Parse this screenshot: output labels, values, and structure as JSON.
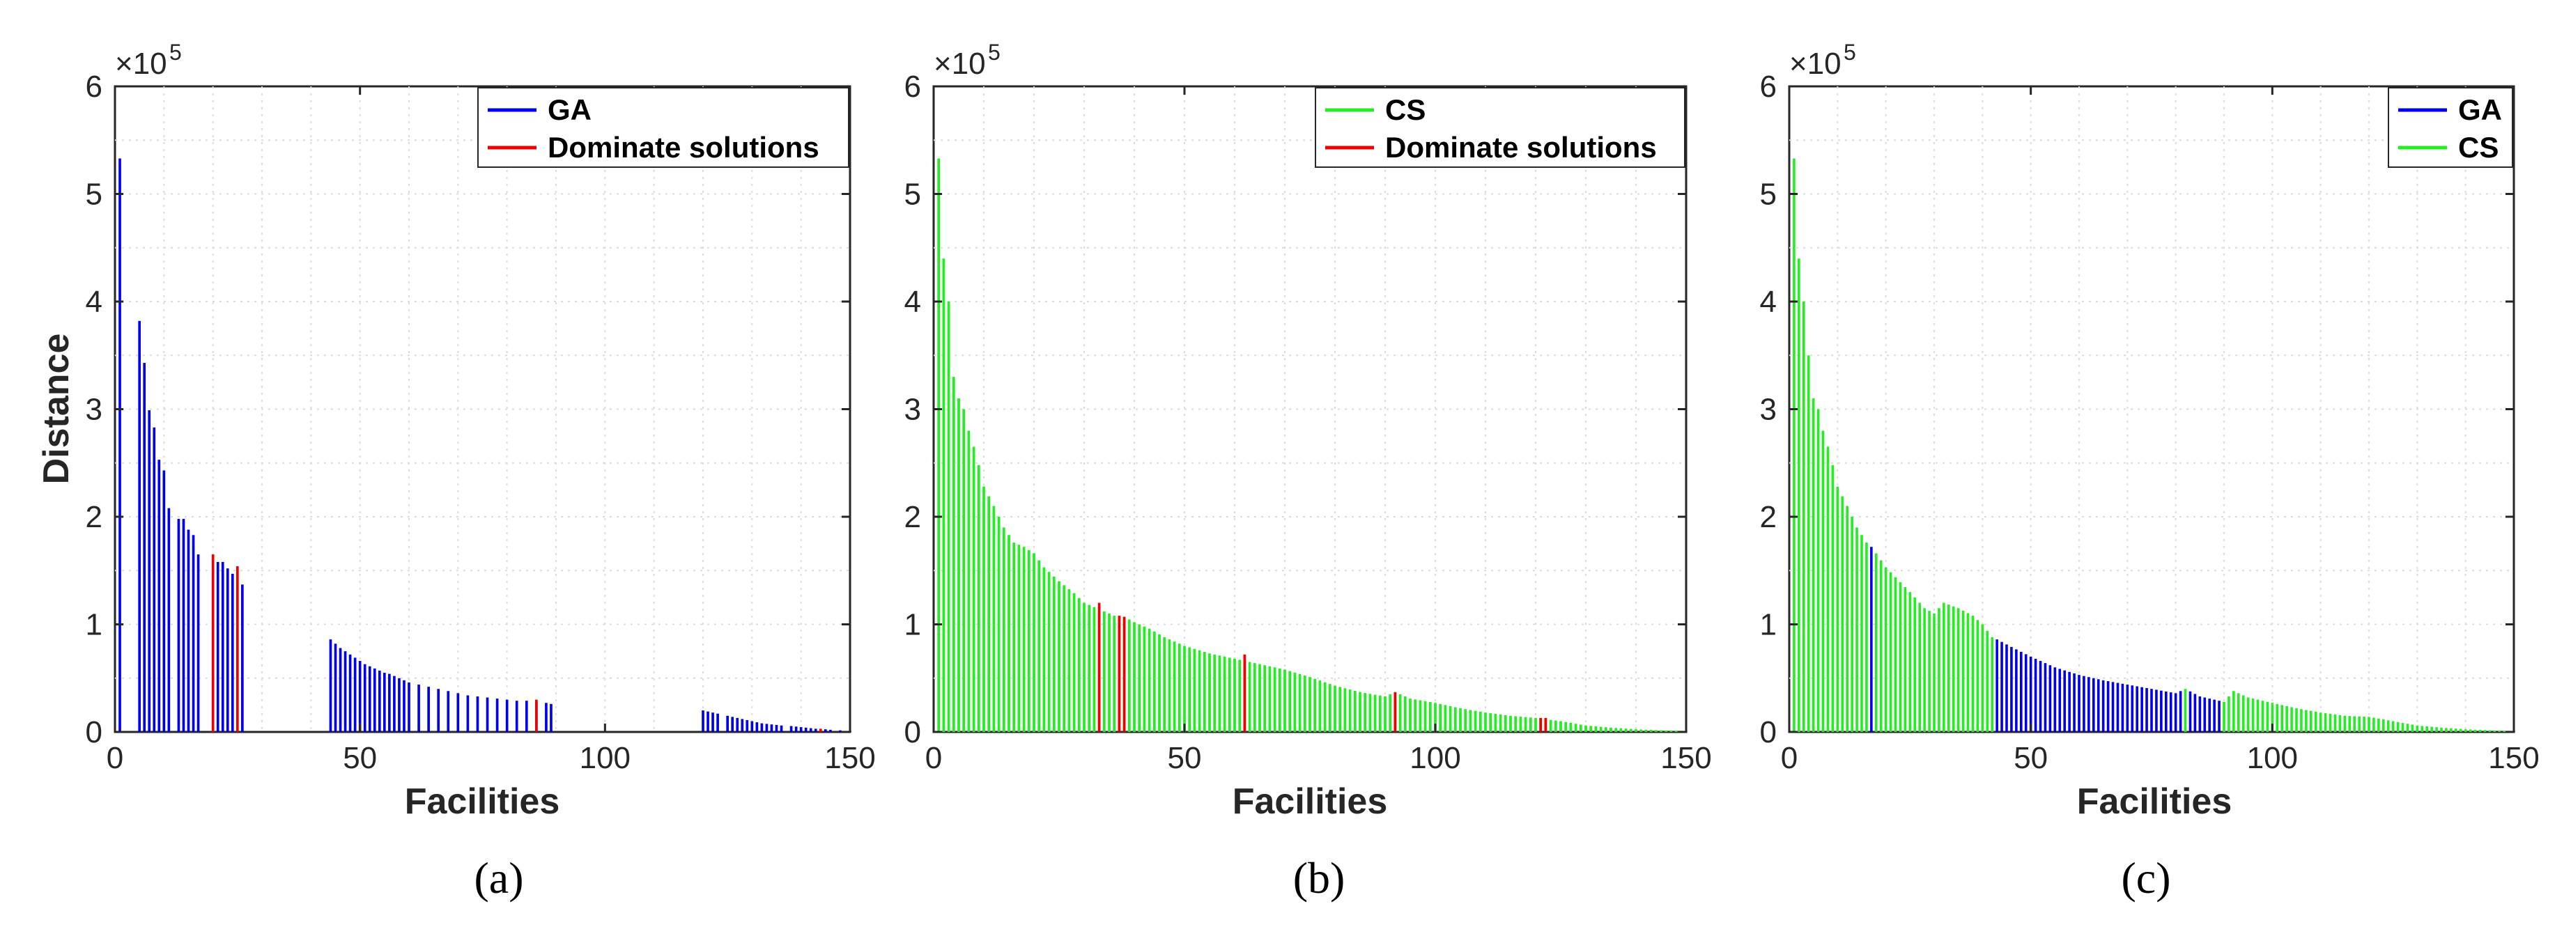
{
  "figure": {
    "captions": [
      "(a)",
      "(b)",
      "(c)"
    ],
    "caption_letters": [
      "a",
      "b",
      "c"
    ],
    "colors": {
      "ga": "#0000ee",
      "cs": "#22ee22",
      "dominate": "#ee0000",
      "axis": "#262626",
      "grid": "#dcdcdc"
    }
  },
  "chart_data": [
    {
      "type": "bar",
      "panel": "a",
      "title": "",
      "xlabel": "Facilities",
      "ylabel": "Distance",
      "exponent_label": "×10",
      "exponent_power": "5",
      "xlim": [
        0,
        150
      ],
      "ylim": [
        0,
        600000
      ],
      "xticks": [
        "0",
        "50",
        "100",
        "150"
      ],
      "yticks": [
        "0",
        "1",
        "2",
        "3",
        "4",
        "5",
        "6"
      ],
      "grid": true,
      "legend_position": "top-right",
      "legend": [
        {
          "label": "GA",
          "color": "#0000ee"
        },
        {
          "label": "Dominate solutions",
          "color": "#ee0000"
        }
      ],
      "series": [
        {
          "name": "GA",
          "color": "#0000ee",
          "x": [
            1,
            5,
            6,
            7,
            8,
            9,
            10,
            11,
            13,
            14,
            15,
            16,
            17,
            21,
            22,
            23,
            24,
            26,
            44,
            45,
            46,
            47,
            48,
            49,
            50,
            51,
            52,
            53,
            54,
            55,
            56,
            57,
            58,
            59,
            60,
            62,
            64,
            66,
            68,
            70,
            72,
            74,
            76,
            78,
            80,
            82,
            84,
            86,
            88,
            89,
            120,
            121,
            122,
            123,
            125,
            126,
            127,
            128,
            129,
            130,
            131,
            132,
            133,
            134,
            135,
            136,
            138,
            139,
            140,
            141,
            142,
            143,
            145,
            146,
            148,
            150
          ],
          "values": [
            533000,
            382000,
            343000,
            299000,
            283000,
            253000,
            243000,
            208000,
            198000,
            198000,
            188000,
            183000,
            165000,
            158000,
            158000,
            152000,
            147000,
            137000,
            86000,
            82000,
            78000,
            75000,
            72000,
            69000,
            66000,
            63000,
            61000,
            59000,
            57000,
            55000,
            54000,
            52000,
            50000,
            48000,
            46000,
            44000,
            42000,
            40000,
            38000,
            36000,
            34000,
            33000,
            32000,
            31000,
            30000,
            29000,
            29000,
            28000,
            27000,
            26000,
            20000,
            19000,
            18000,
            17000,
            15000,
            14000,
            13000,
            12000,
            11000,
            10000,
            9000,
            8000,
            7500,
            7000,
            6500,
            6000,
            5500,
            5000,
            4500,
            4000,
            3500,
            3000,
            2500,
            2000,
            1500,
            1000
          ]
        },
        {
          "name": "Dominate solutions",
          "color": "#ee0000",
          "x": [
            20,
            25,
            86,
            144
          ],
          "values": [
            165000,
            154000,
            30000,
            3000
          ]
        }
      ]
    },
    {
      "type": "bar",
      "panel": "b",
      "title": "",
      "xlabel": "Facilities",
      "ylabel": "",
      "exponent_label": "×10",
      "exponent_power": "5",
      "xlim": [
        0,
        150
      ],
      "ylim": [
        0,
        600000
      ],
      "xticks": [
        "0",
        "50",
        "100",
        "150"
      ],
      "yticks": [
        "0",
        "1",
        "2",
        "3",
        "4",
        "5",
        "6"
      ],
      "grid": true,
      "legend_position": "top-right",
      "legend": [
        {
          "label": "CS",
          "color": "#22ee22"
        },
        {
          "label": "Dominate solutions",
          "color": "#ee0000"
        }
      ],
      "series": [
        {
          "name": "CS",
          "color": "#22ee22",
          "x_start": 1,
          "x_end": 150,
          "anchor_x": [
            1,
            2,
            3,
            4,
            5,
            6,
            7,
            8,
            9,
            10,
            12,
            14,
            16,
            18,
            20,
            22,
            25,
            28,
            30,
            32,
            34,
            36,
            38,
            40,
            43,
            46,
            50,
            55,
            60,
            65,
            70,
            75,
            80,
            85,
            90,
            92,
            95,
            100,
            105,
            110,
            115,
            120,
            125,
            130,
            135,
            140,
            145,
            150
          ],
          "anchor_values": [
            533000,
            440000,
            400000,
            330000,
            310000,
            300000,
            280000,
            265000,
            248000,
            228000,
            210000,
            190000,
            176000,
            172000,
            166000,
            153000,
            140000,
            129000,
            120000,
            116000,
            112000,
            108000,
            107000,
            102000,
            96000,
            88000,
            80000,
            73000,
            68000,
            63000,
            58000,
            51000,
            43000,
            37000,
            33000,
            37000,
            31000,
            27000,
            22000,
            18000,
            15000,
            13000,
            10000,
            6000,
            4000,
            2500,
            1500,
            1000
          ]
        },
        {
          "name": "Dominate solutions",
          "color": "#ee0000",
          "x": [
            33,
            37,
            38,
            62,
            92,
            121,
            122
          ],
          "values": [
            120000,
            108000,
            107000,
            72000,
            37000,
            13000,
            13000
          ]
        }
      ]
    },
    {
      "type": "bar",
      "panel": "c",
      "title": "",
      "xlabel": "Facilities",
      "ylabel": "",
      "exponent_label": "×10",
      "exponent_power": "5",
      "xlim": [
        0,
        150
      ],
      "ylim": [
        0,
        600000
      ],
      "xticks": [
        "0",
        "50",
        "100",
        "150"
      ],
      "yticks": [
        "0",
        "1",
        "2",
        "3",
        "4",
        "5",
        "6"
      ],
      "grid": true,
      "legend_position": "top-right",
      "legend": [
        {
          "label": "GA",
          "color": "#0000ee"
        },
        {
          "label": "CS",
          "color": "#22ee22"
        }
      ],
      "series": [
        {
          "name": "CS",
          "color": "#22ee22",
          "x_start": 1,
          "x_end": 150,
          "anchor_x": [
            1,
            2,
            3,
            4,
            5,
            6,
            7,
            8,
            9,
            10,
            12,
            14,
            16,
            17,
            18,
            20,
            25,
            28,
            30,
            32,
            35,
            38,
            40,
            42,
            43,
            46,
            50,
            55,
            60,
            65,
            70,
            75,
            80,
            82,
            85,
            88,
            90,
            92,
            95,
            100,
            105,
            110,
            115,
            120,
            125,
            130,
            135,
            140,
            145,
            150
          ],
          "anchor_values": [
            533000,
            440000,
            400000,
            350000,
            310000,
            300000,
            280000,
            265000,
            248000,
            228000,
            210000,
            190000,
            176000,
            172000,
            166000,
            153000,
            130000,
            115000,
            110000,
            120000,
            115000,
            108000,
            100000,
            88000,
            86000,
            79000,
            70000,
            60000,
            53000,
            48000,
            44000,
            40000,
            36000,
            40000,
            33000,
            30000,
            28000,
            38000,
            32000,
            27000,
            22000,
            18000,
            15000,
            14000,
            10000,
            6000,
            4000,
            2500,
            1500,
            1000
          ]
        },
        {
          "name": "GA",
          "color": "#0000ee",
          "x_ranges": [
            [
              17,
              17
            ],
            [
              43,
              81
            ],
            [
              83,
              89
            ]
          ],
          "x_extra": [
            150
          ],
          "note": "GA bars overlay CS bars at these facilities, heights follow the CS envelope"
        }
      ]
    }
  ]
}
